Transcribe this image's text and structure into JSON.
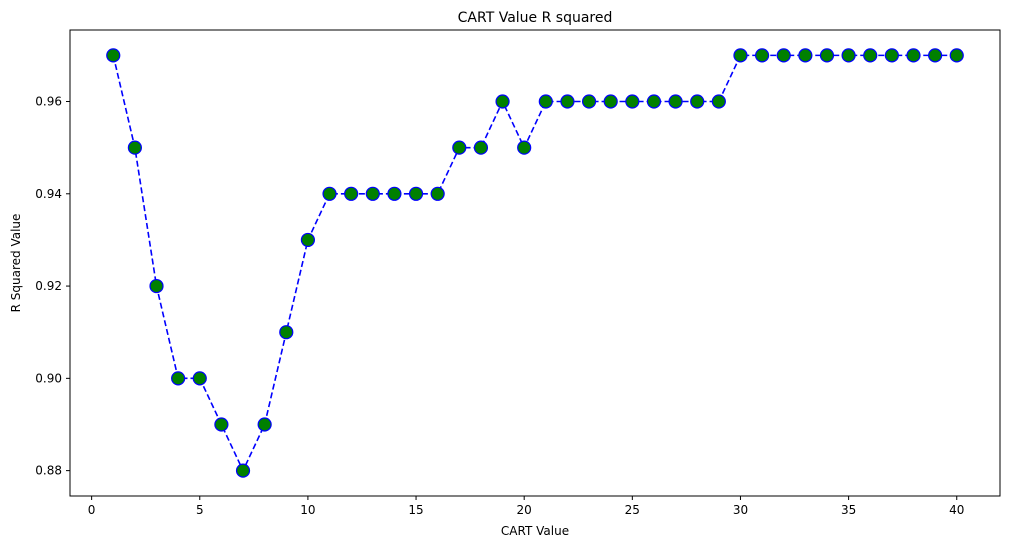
{
  "chart_data": {
    "type": "line",
    "title": "CART Value R squared",
    "xlabel": "CART Value",
    "ylabel": "R Squared Value",
    "xlim": [
      -1,
      42
    ],
    "ylim": [
      0.8745,
      0.9755
    ],
    "xticks": [
      0,
      5,
      10,
      15,
      20,
      25,
      30,
      35,
      40
    ],
    "yticks": [
      0.88,
      0.9,
      0.92,
      0.94,
      0.96
    ],
    "ytick_labels": [
      "0.88",
      "0.90",
      "0.92",
      "0.94",
      "0.96"
    ],
    "grid": false,
    "line_style": "dashed",
    "line_color": "#0000ff",
    "marker_face_color": "#008000",
    "marker_edge_color": "#0000ff",
    "series": [
      {
        "x": [
          1,
          2,
          3,
          4,
          5,
          6,
          7,
          8,
          9,
          10,
          11,
          12,
          13,
          14,
          15,
          16,
          17,
          18,
          19,
          20,
          21,
          22,
          23,
          24,
          25,
          26,
          27,
          28,
          29,
          30,
          31,
          32,
          33,
          34,
          35,
          36,
          37,
          38,
          39,
          40
        ],
        "values": [
          0.97,
          0.95,
          0.92,
          0.9,
          0.9,
          0.89,
          0.88,
          0.89,
          0.91,
          0.93,
          0.94,
          0.94,
          0.94,
          0.94,
          0.94,
          0.94,
          0.95,
          0.95,
          0.96,
          0.95,
          0.96,
          0.96,
          0.96,
          0.96,
          0.96,
          0.96,
          0.96,
          0.96,
          0.96,
          0.97,
          0.97,
          0.97,
          0.97,
          0.97,
          0.97,
          0.97,
          0.97,
          0.97,
          0.97,
          0.97
        ]
      }
    ]
  }
}
